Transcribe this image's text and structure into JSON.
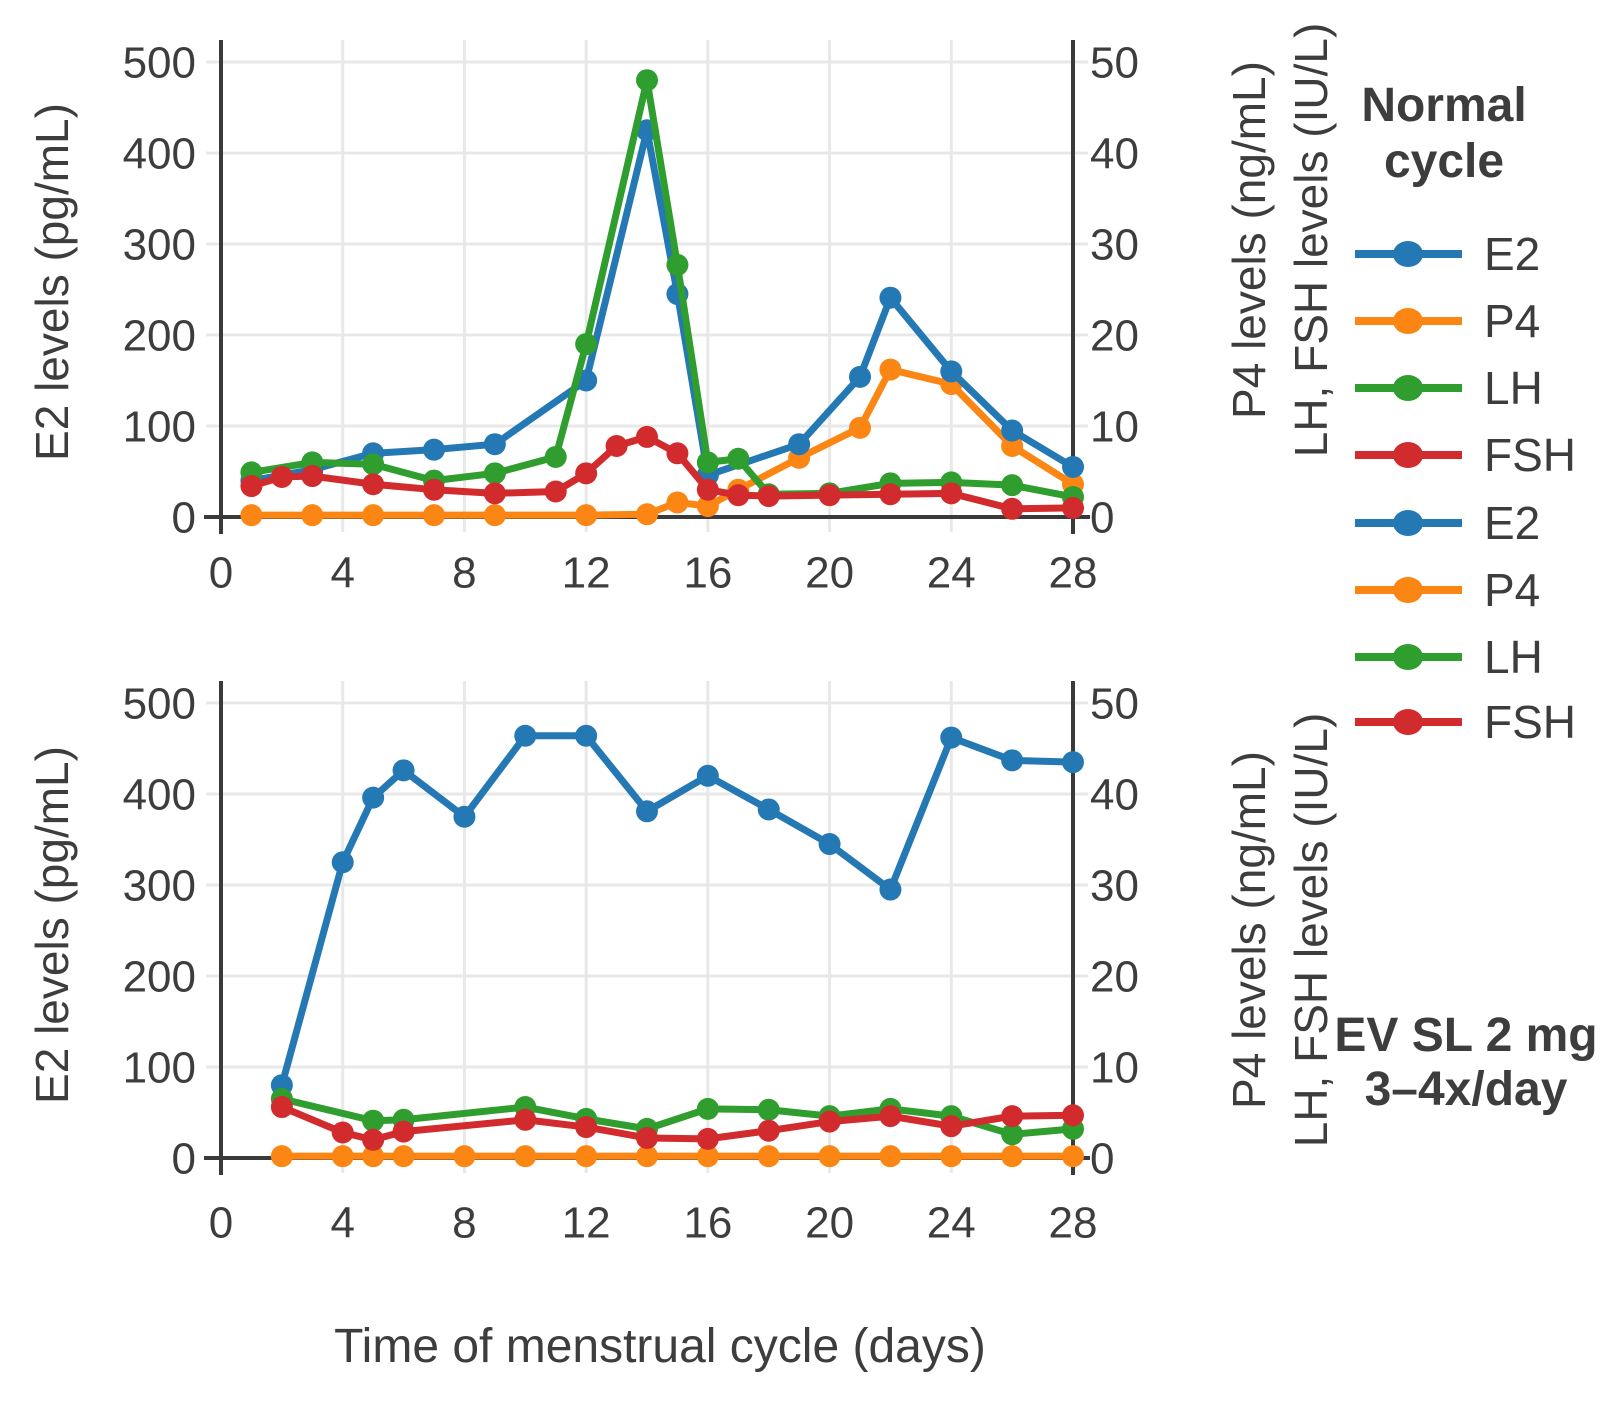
{
  "figure": {
    "x_axis_title": "Time of menstrual cycle (days)"
  },
  "style": {
    "axis_color": "#3a3a3a",
    "grid_color": "#e8e8e8",
    "text_color": "#3d3d3d",
    "series_colors": {
      "E2": "#2478b4",
      "P4": "#fb8614",
      "LH": "#2f9e2e",
      "FSH": "#d12b2e"
    }
  },
  "legend": {
    "normal_cycle": {
      "line1": "Normal",
      "line2": "cycle"
    },
    "ev_sl": {
      "line1": "EV SL 2 mg",
      "line2": "3–4x/day"
    },
    "items": [
      {
        "label": "E2",
        "color": "#2478b4"
      },
      {
        "label": "P4",
        "color": "#fb8614"
      },
      {
        "label": "LH",
        "color": "#2f9e2e"
      },
      {
        "label": "FSH",
        "color": "#d12b2e"
      },
      {
        "label": "E2",
        "color": "#2478b4"
      },
      {
        "label": "P4",
        "color": "#fb8614"
      },
      {
        "label": "LH",
        "color": "#2f9e2e"
      },
      {
        "label": "FSH",
        "color": "#d12b2e"
      }
    ]
  },
  "chart_data": [
    {
      "id": "normal-cycle",
      "type": "line",
      "title": "Normal cycle",
      "x_axis": {
        "label": "Time of menstrual cycle (days)",
        "range": [
          0,
          28
        ],
        "ticks": [
          0,
          4,
          8,
          12,
          16,
          20,
          24,
          28
        ]
      },
      "y_left": {
        "label": "E2 levels (pg/mL)",
        "range": [
          0,
          500
        ],
        "ticks": [
          0,
          100,
          200,
          300,
          400,
          500
        ]
      },
      "y_right": {
        "label_p4": "P4 levels (ng/mL)",
        "label_lhfsh": "LH, FSH levels (IU/L)",
        "range": [
          0,
          50
        ],
        "ticks": [
          0,
          10,
          20,
          30,
          40,
          50
        ]
      },
      "grid": true,
      "series": [
        {
          "name": "E2",
          "unit": "pg/mL",
          "axis": "left",
          "color": "#2478b4",
          "days": [
            1,
            3,
            5,
            7,
            9,
            12,
            14,
            15,
            16,
            19,
            21,
            22,
            24,
            26,
            28
          ],
          "values": [
            40,
            52,
            70,
            74,
            80,
            150,
            425,
            245,
            46,
            80,
            154,
            241,
            160,
            95,
            55
          ]
        },
        {
          "name": "P4",
          "unit": "ng/mL",
          "axis": "right",
          "color": "#fb8614",
          "days": [
            1,
            3,
            5,
            7,
            9,
            12,
            14,
            15,
            16,
            17,
            19,
            21,
            22,
            24,
            26,
            28
          ],
          "values": [
            0.2,
            0.2,
            0.2,
            0.2,
            0.2,
            0.2,
            0.3,
            1.6,
            1.2,
            3.0,
            6.5,
            9.8,
            16.2,
            14.6,
            7.8,
            3.6
          ]
        },
        {
          "name": "LH",
          "unit": "IU/L",
          "axis": "right",
          "color": "#2f9e2e",
          "days": [
            1,
            3,
            5,
            7,
            9,
            11,
            12,
            14,
            15,
            16,
            17,
            18,
            20,
            22,
            24,
            26,
            28
          ],
          "values": [
            4.9,
            6.0,
            5.8,
            4.0,
            4.8,
            6.6,
            19.0,
            48.0,
            27.7,
            6.0,
            6.4,
            2.5,
            2.6,
            3.7,
            3.8,
            3.5,
            2.2
          ]
        },
        {
          "name": "FSH",
          "unit": "IU/L",
          "axis": "right",
          "color": "#d12b2e",
          "days": [
            1,
            2,
            3,
            5,
            7,
            9,
            11,
            12,
            13,
            14,
            15,
            16,
            17,
            18,
            20,
            22,
            24,
            26,
            28
          ],
          "values": [
            3.4,
            4.4,
            4.5,
            3.6,
            3.0,
            2.6,
            2.8,
            4.8,
            7.8,
            8.8,
            7.0,
            3.0,
            2.4,
            2.3,
            2.4,
            2.5,
            2.6,
            0.9,
            1.0
          ]
        }
      ]
    },
    {
      "id": "ev-sl-2mg",
      "type": "line",
      "title": "EV SL 2 mg 3–4x/day",
      "x_axis": {
        "label": "Time of menstrual cycle (days)",
        "range": [
          0,
          28
        ],
        "ticks": [
          0,
          4,
          8,
          12,
          16,
          20,
          24,
          28
        ]
      },
      "y_left": {
        "label": "E2 levels (pg/mL)",
        "range": [
          0,
          500
        ],
        "ticks": [
          0,
          100,
          200,
          300,
          400,
          500
        ]
      },
      "y_right": {
        "label_p4": "P4 levels (ng/mL)",
        "label_lhfsh": "LH, FSH levels (IU/L)",
        "range": [
          0,
          50
        ],
        "ticks": [
          0,
          10,
          20,
          30,
          40,
          50
        ]
      },
      "grid": true,
      "series": [
        {
          "name": "E2",
          "unit": "pg/mL",
          "axis": "left",
          "color": "#2478b4",
          "days": [
            2,
            4,
            5,
            6,
            8,
            10,
            12,
            14,
            16,
            18,
            20,
            22,
            24,
            26,
            28
          ],
          "values": [
            80,
            325,
            396,
            426,
            375,
            464,
            464,
            381,
            420,
            383,
            345,
            295,
            462,
            437,
            435
          ]
        },
        {
          "name": "P4",
          "unit": "ng/mL",
          "axis": "right",
          "color": "#fb8614",
          "days": [
            2,
            4,
            5,
            6,
            8,
            10,
            12,
            14,
            16,
            18,
            20,
            22,
            24,
            26,
            28
          ],
          "values": [
            0.2,
            0.2,
            0.2,
            0.2,
            0.2,
            0.2,
            0.2,
            0.2,
            0.2,
            0.2,
            0.2,
            0.2,
            0.2,
            0.2,
            0.2
          ]
        },
        {
          "name": "LH",
          "unit": "IU/L",
          "axis": "right",
          "color": "#2f9e2e",
          "days": [
            2,
            5,
            6,
            10,
            12,
            14,
            16,
            18,
            20,
            22,
            24,
            26,
            28
          ],
          "values": [
            6.5,
            4.1,
            4.2,
            5.6,
            4.3,
            3.2,
            5.4,
            5.3,
            4.6,
            5.4,
            4.6,
            2.6,
            3.2
          ]
        },
        {
          "name": "FSH",
          "unit": "IU/L",
          "axis": "right",
          "color": "#d12b2e",
          "days": [
            2,
            4,
            5,
            6,
            10,
            12,
            14,
            16,
            18,
            20,
            22,
            24,
            26,
            28
          ],
          "values": [
            5.6,
            2.8,
            2.0,
            2.9,
            4.2,
            3.4,
            2.2,
            2.1,
            3.0,
            4.0,
            4.6,
            3.5,
            4.6,
            4.7
          ]
        }
      ]
    }
  ]
}
